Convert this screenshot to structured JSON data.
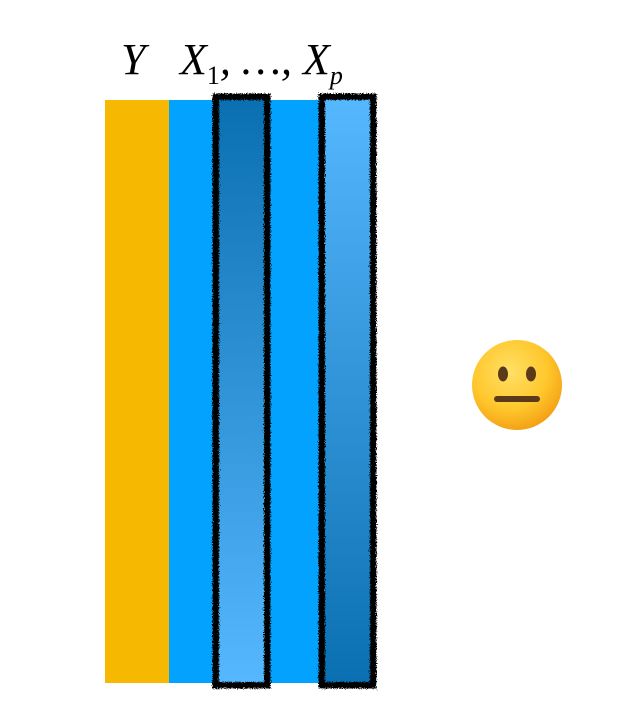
{
  "labels": {
    "response": "Y",
    "predictors_head": "X",
    "predictors_first_sub": "1",
    "predictors_mid": ", …, X",
    "predictors_last_sub": "p"
  },
  "colors": {
    "response_column": "#F6B800",
    "predictor_block": "#03A2FF",
    "selected_dark": "#0A6FB0",
    "selected_light": "#56B8FF",
    "outline": "#000000"
  },
  "icons": {
    "status": "neutral-face-icon"
  }
}
